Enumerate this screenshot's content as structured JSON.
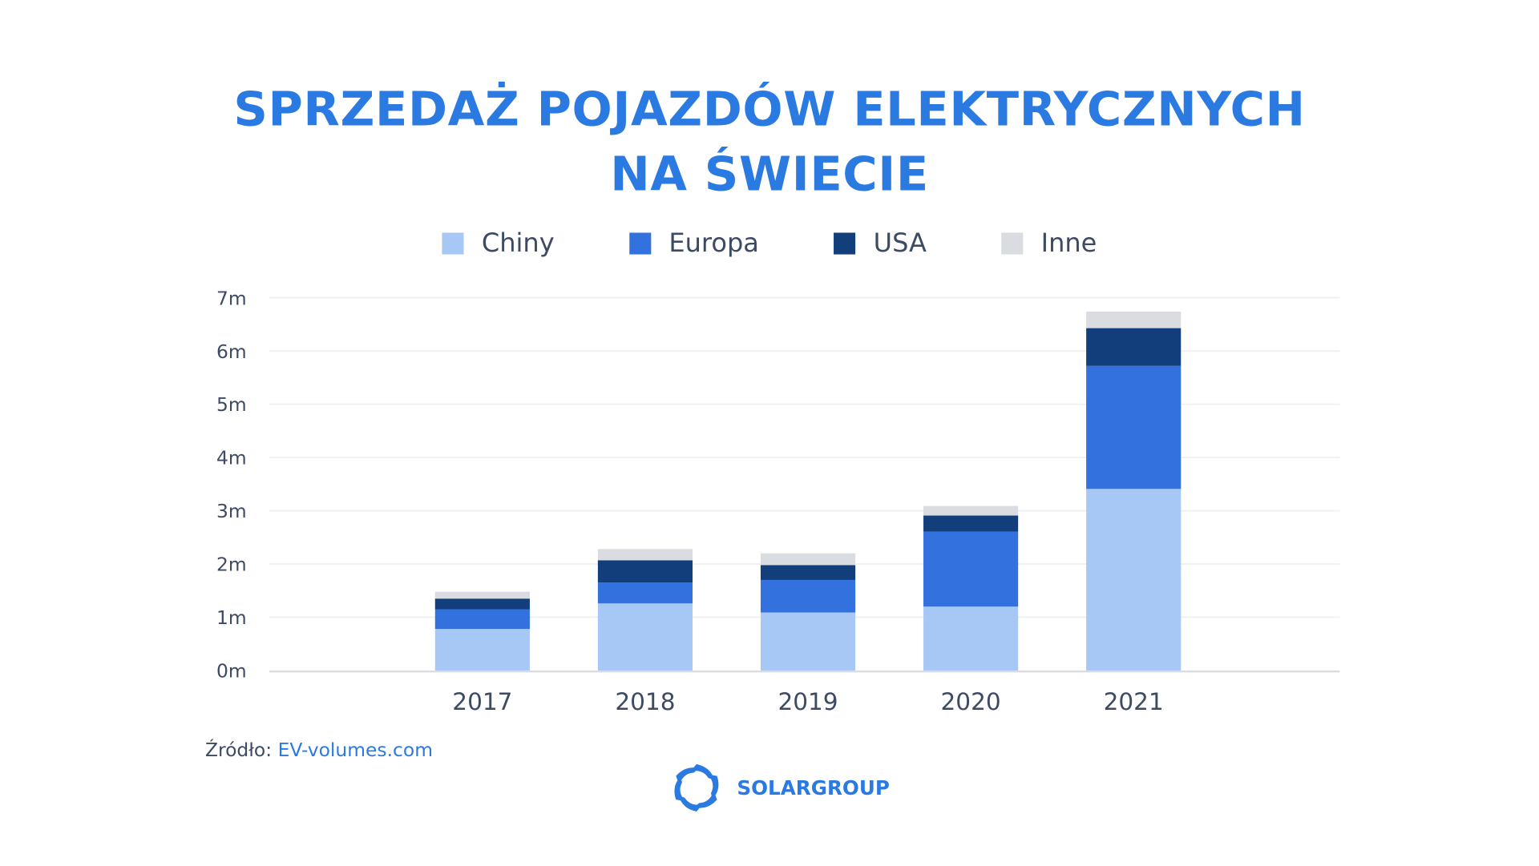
{
  "title_lines": [
    "SPRZEDAŻ POJAZDÓW ELEKTRYCZNYCH",
    "NA ŚWIECIE"
  ],
  "source": {
    "label": "Źródło:",
    "link_text": "EV-volumes.com"
  },
  "logo": {
    "text": "SOLARGROUP",
    "color": "#2a7ae2"
  },
  "chart_data": {
    "type": "bar",
    "stacked": true,
    "title": "SPRZEDAŻ POJAZDÓW ELEKTRYCZNYCH NA ŚWIECIE",
    "categories": [
      "2017",
      "2018",
      "2019",
      "2020",
      "2021"
    ],
    "series": [
      {
        "name": "Chiny",
        "color": "#a7c8f4",
        "values": [
          0.78,
          1.26,
          1.09,
          1.2,
          3.41
        ]
      },
      {
        "name": "Europa",
        "color": "#3371de",
        "values": [
          0.37,
          0.39,
          0.61,
          1.41,
          2.31
        ]
      },
      {
        "name": "USA",
        "color": "#123f7c",
        "values": [
          0.2,
          0.42,
          0.28,
          0.3,
          0.71
        ]
      },
      {
        "name": "Inne",
        "color": "#d9dce0",
        "values": [
          0.13,
          0.21,
          0.22,
          0.18,
          0.31
        ]
      }
    ],
    "yticks": [
      "0m",
      "1m",
      "2m",
      "3m",
      "4m",
      "5m",
      "6m",
      "7m"
    ],
    "ylim": [
      0,
      7
    ],
    "unit": "m",
    "grid": true,
    "legend": "top"
  }
}
